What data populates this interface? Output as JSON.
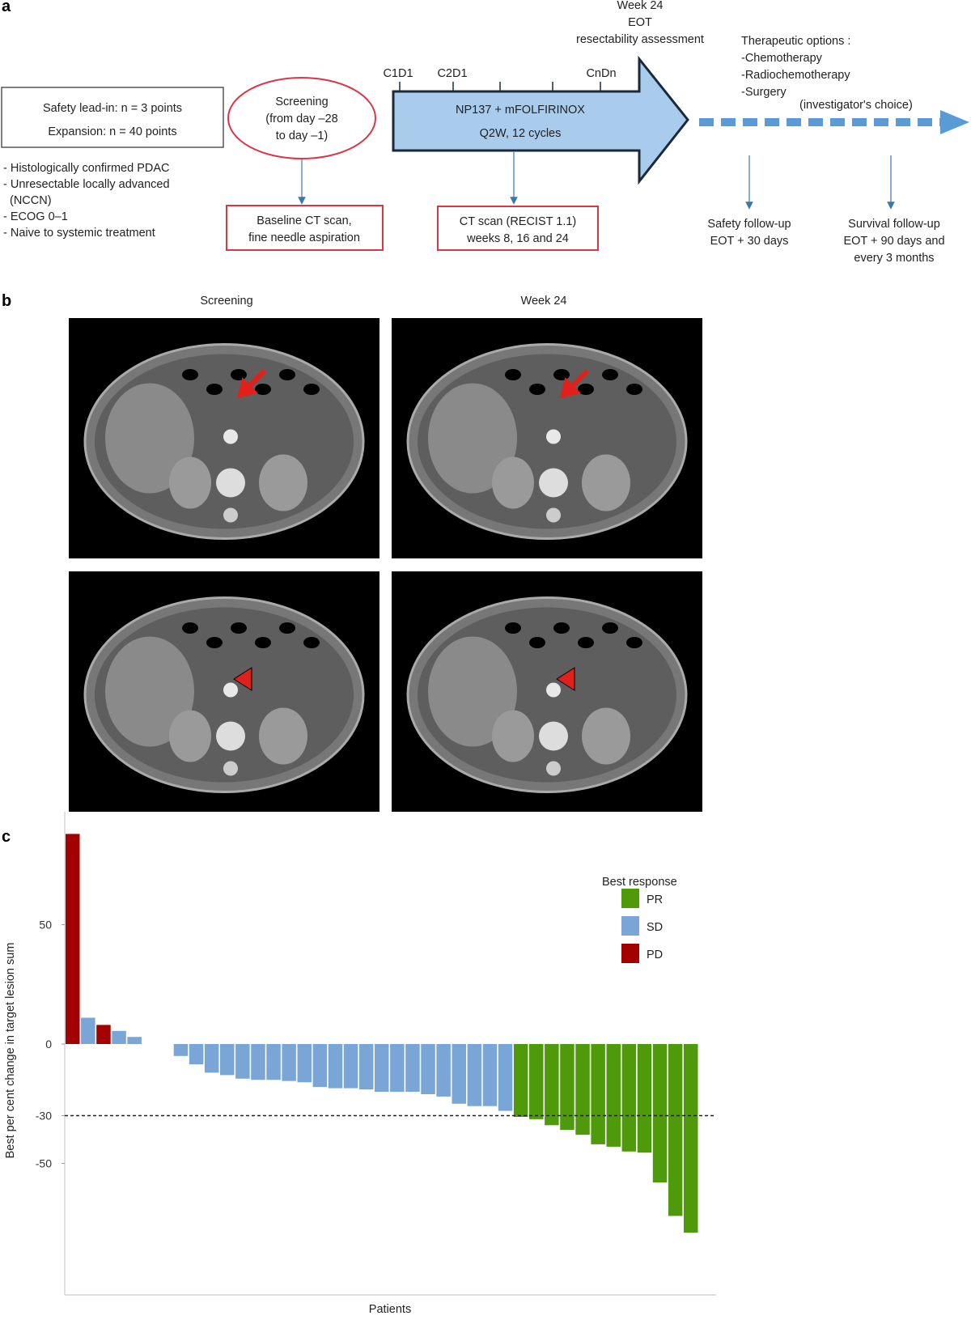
{
  "panel_labels": {
    "a": "a",
    "b": "b",
    "c": "c"
  },
  "panel_a": {
    "cohort_box": [
      "Safety lead-in: n = 3 points",
      "Expansion: n = 40 points"
    ],
    "criteria": [
      "- Histologically confirmed PDAC",
      "- Unresectable locally advanced",
      "  (NCCN)",
      "- ECOG 0–1",
      "- Naive to systemic treatment"
    ],
    "screening": [
      "Screening",
      "(from day –28",
      "to day –1)"
    ],
    "baseline": [
      "Baseline CT scan,",
      "fine needle aspiration"
    ],
    "cycle_ticks": [
      "C1D1",
      "C2D1",
      "CnDn"
    ],
    "treatment": [
      "NP137 + mFOLFIRINOX",
      "Q2W, 12 cycles"
    ],
    "week24": [
      "Week 24",
      "EOT",
      "resectability assessment"
    ],
    "ct_scan": [
      "CT scan (RECIST 1.1)",
      "weeks 8, 16 and 24"
    ],
    "therapeutic": [
      "Therapeutic options :",
      "-Chemotherapy",
      "-Radiochemotherapy",
      "-Surgery"
    ],
    "investigator": "(investigator's choice)",
    "safety_followup": [
      "Safety follow-up",
      "EOT + 30 days"
    ],
    "survival_followup": [
      "Survival follow-up",
      "EOT + 90 days and",
      "every 3 months"
    ],
    "colors": {
      "arrow_fill": "#a9cbec",
      "arrow_stroke": "#1b2a3a",
      "red_box": "#d9364a",
      "dashed": "#5b9bd5"
    }
  },
  "panel_b": {
    "column_titles": [
      "Screening",
      "Week 24"
    ],
    "markers": [
      "arrow",
      "arrow",
      "arrowhead",
      "arrowhead"
    ]
  },
  "chart_data": {
    "type": "bar",
    "title": "",
    "xlabel": "Patients",
    "ylabel": "Best per cent change in target lesion sum",
    "yticks": [
      50,
      0,
      -30,
      -50
    ],
    "ylim": [
      -80,
      95
    ],
    "reference_line": -30,
    "legend": {
      "title": "Best response",
      "position": "top-right",
      "entries": [
        "PR",
        "SD",
        "PD"
      ]
    },
    "colors": {
      "PR": "#4f9a0a",
      "SD": "#79a6d6",
      "PD": "#a30000"
    },
    "bars": [
      {
        "value": 88,
        "response": "PD"
      },
      {
        "value": 11,
        "response": "SD"
      },
      {
        "value": 8,
        "response": "PD"
      },
      {
        "value": 5.5,
        "response": "SD"
      },
      {
        "value": 3,
        "response": "SD"
      },
      {
        "value": 0,
        "response": "SD"
      },
      {
        "value": 0,
        "response": "SD"
      },
      {
        "value": -5,
        "response": "SD"
      },
      {
        "value": -8.5,
        "response": "SD"
      },
      {
        "value": -12,
        "response": "SD"
      },
      {
        "value": -13,
        "response": "SD"
      },
      {
        "value": -14.5,
        "response": "SD"
      },
      {
        "value": -15,
        "response": "SD"
      },
      {
        "value": -15,
        "response": "SD"
      },
      {
        "value": -15.5,
        "response": "SD"
      },
      {
        "value": -16,
        "response": "SD"
      },
      {
        "value": -18,
        "response": "SD"
      },
      {
        "value": -18.5,
        "response": "SD"
      },
      {
        "value": -18.5,
        "response": "SD"
      },
      {
        "value": -19,
        "response": "SD"
      },
      {
        "value": -20,
        "response": "SD"
      },
      {
        "value": -20,
        "response": "SD"
      },
      {
        "value": -20,
        "response": "SD"
      },
      {
        "value": -21,
        "response": "SD"
      },
      {
        "value": -22,
        "response": "SD"
      },
      {
        "value": -25,
        "response": "SD"
      },
      {
        "value": -26,
        "response": "SD"
      },
      {
        "value": -26,
        "response": "SD"
      },
      {
        "value": -28,
        "response": "SD"
      },
      {
        "value": -30.5,
        "response": "PR"
      },
      {
        "value": -31.5,
        "response": "PR"
      },
      {
        "value": -34,
        "response": "PR"
      },
      {
        "value": -36,
        "response": "PR"
      },
      {
        "value": -38,
        "response": "PR"
      },
      {
        "value": -42,
        "response": "PR"
      },
      {
        "value": -43,
        "response": "PR"
      },
      {
        "value": -45,
        "response": "PR"
      },
      {
        "value": -45.5,
        "response": "PR"
      },
      {
        "value": -58,
        "response": "PR"
      },
      {
        "value": -72,
        "response": "PR"
      },
      {
        "value": -79,
        "response": "PR"
      }
    ]
  }
}
